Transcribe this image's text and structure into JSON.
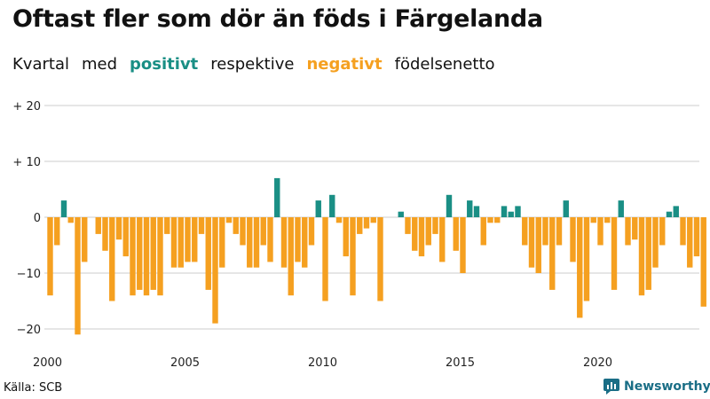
{
  "title": "Oftast fler som dör än föds i Färgelanda",
  "subtitle": {
    "w1": "Kvartal",
    "w2": "med",
    "positive": "positivt",
    "w3": "respektive",
    "negative": "negativt",
    "w4": "födelsenetto"
  },
  "source": "Källa: SCB",
  "brand": "Newsworthy",
  "colors": {
    "positive": "#1a8f85",
    "negative": "#f5a020",
    "grid": "#cccccc"
  },
  "chart_data": {
    "type": "bar",
    "title": "Oftast fler som dör än föds i Färgelanda",
    "xlabel": "",
    "ylabel": "",
    "ylim": [
      -22,
      20
    ],
    "yticks": [
      {
        "value": 20,
        "label": "+ 20"
      },
      {
        "value": 10,
        "label": "+ 10"
      },
      {
        "value": 0,
        "label": "0"
      },
      {
        "value": -10,
        "label": "−10"
      },
      {
        "value": -20,
        "label": "−20"
      }
    ],
    "xticks": [
      "2000",
      "2005",
      "2010",
      "2015",
      "2020"
    ],
    "start_year": 2000,
    "periods_per_year": 4,
    "values": [
      -14,
      -5,
      3,
      -1,
      -21,
      -8,
      0,
      -3,
      -6,
      -15,
      -4,
      -7,
      -14,
      -13,
      -14,
      -13,
      -14,
      -3,
      -9,
      -9,
      -8,
      -8,
      -3,
      -13,
      -19,
      -9,
      -1,
      -3,
      -5,
      -9,
      -9,
      -5,
      -8,
      7,
      -9,
      -14,
      -8,
      -9,
      -5,
      3,
      -15,
      4,
      -1,
      -7,
      -14,
      -3,
      -2,
      -1,
      -15,
      0,
      0,
      1,
      -3,
      -6,
      -7,
      -5,
      -3,
      -8,
      4,
      -6,
      -10,
      3,
      2,
      -5,
      -1,
      -1,
      2,
      1,
      2,
      -5,
      -9,
      -10,
      -5,
      -13,
      -5,
      3,
      -8,
      -18,
      -15,
      -1,
      -5,
      -1,
      -13,
      3,
      -5,
      -4,
      -14,
      -13,
      -9,
      -5,
      1,
      2,
      -5,
      -9,
      -7,
      -16
    ]
  }
}
